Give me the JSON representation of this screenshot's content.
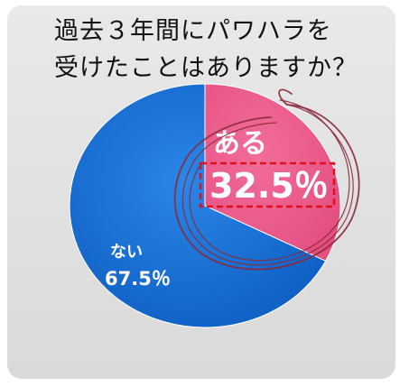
{
  "chart_data": {
    "type": "pie",
    "title": "過去３年間にパワハラを\n受けたことはありますか？",
    "categories": [
      "ある",
      "ない"
    ],
    "values": [
      32.5,
      67.5
    ],
    "value_labels": [
      "32.5％",
      "67.5％"
    ],
    "colors": [
      "#ee5c8c",
      "#1a6fd3"
    ],
    "start": "12 o'clock",
    "direction": "clockwise",
    "highlight": "ある"
  }
}
